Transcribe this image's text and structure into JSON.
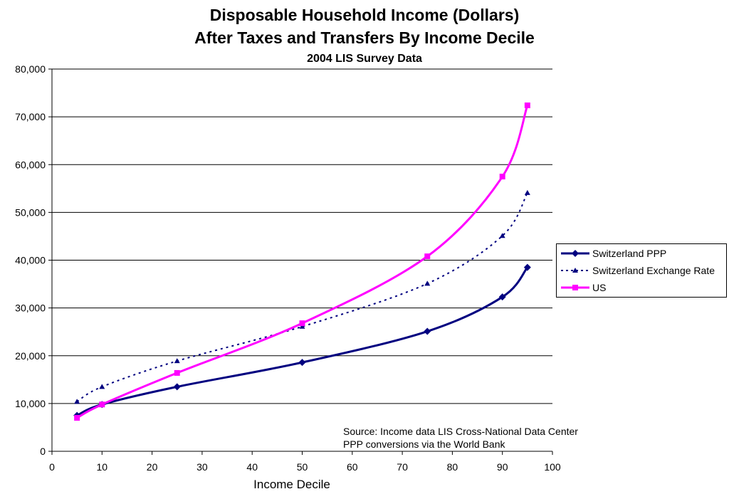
{
  "chart_data": {
    "type": "line",
    "title": "Disposable Household Income (Dollars)",
    "title_line2": "After Taxes and Transfers By Income Decile",
    "subtitle": "2004 LIS Survey Data",
    "xlabel": "Income Decile",
    "ylabel": "",
    "xlim": [
      0,
      100
    ],
    "ylim": [
      0,
      80000
    ],
    "x_ticks": [
      0,
      10,
      20,
      30,
      40,
      50,
      60,
      70,
      80,
      90,
      100
    ],
    "y_ticks": [
      0,
      10000,
      20000,
      30000,
      40000,
      50000,
      60000,
      70000,
      80000
    ],
    "x_tick_labels": [
      "0",
      "10",
      "20",
      "30",
      "40",
      "50",
      "60",
      "70",
      "80",
      "90",
      "100"
    ],
    "y_tick_labels": [
      "0",
      "10,000",
      "20,000",
      "30,000",
      "40,000",
      "50,000",
      "60,000",
      "70,000",
      "80,000"
    ],
    "grid": "horizontal",
    "legend_position": "right",
    "series": [
      {
        "name": "Switzerland PPP",
        "color": "#000080",
        "style": "solid",
        "marker": "diamond",
        "x": [
          5,
          10,
          25,
          50,
          75,
          90,
          95
        ],
        "y": [
          7500,
          9800,
          13500,
          18600,
          25100,
          32300,
          38500
        ]
      },
      {
        "name": "Switzerland Exchange Rate",
        "color": "#000080",
        "style": "dotted",
        "marker": "triangle",
        "x": [
          5,
          10,
          25,
          50,
          75,
          90,
          95
        ],
        "y": [
          10400,
          13500,
          18900,
          26100,
          35100,
          45100,
          54100
        ]
      },
      {
        "name": "US",
        "color": "#ff00ff",
        "style": "solid",
        "marker": "square",
        "x": [
          5,
          10,
          25,
          50,
          75,
          90,
          95
        ],
        "y": [
          7000,
          9800,
          16400,
          26800,
          40800,
          57500,
          72400
        ]
      }
    ],
    "annotation": {
      "line1": "Source:  Income data LIS Cross-National Data Center",
      "line2": "PPP conversions via the World Bank"
    }
  }
}
